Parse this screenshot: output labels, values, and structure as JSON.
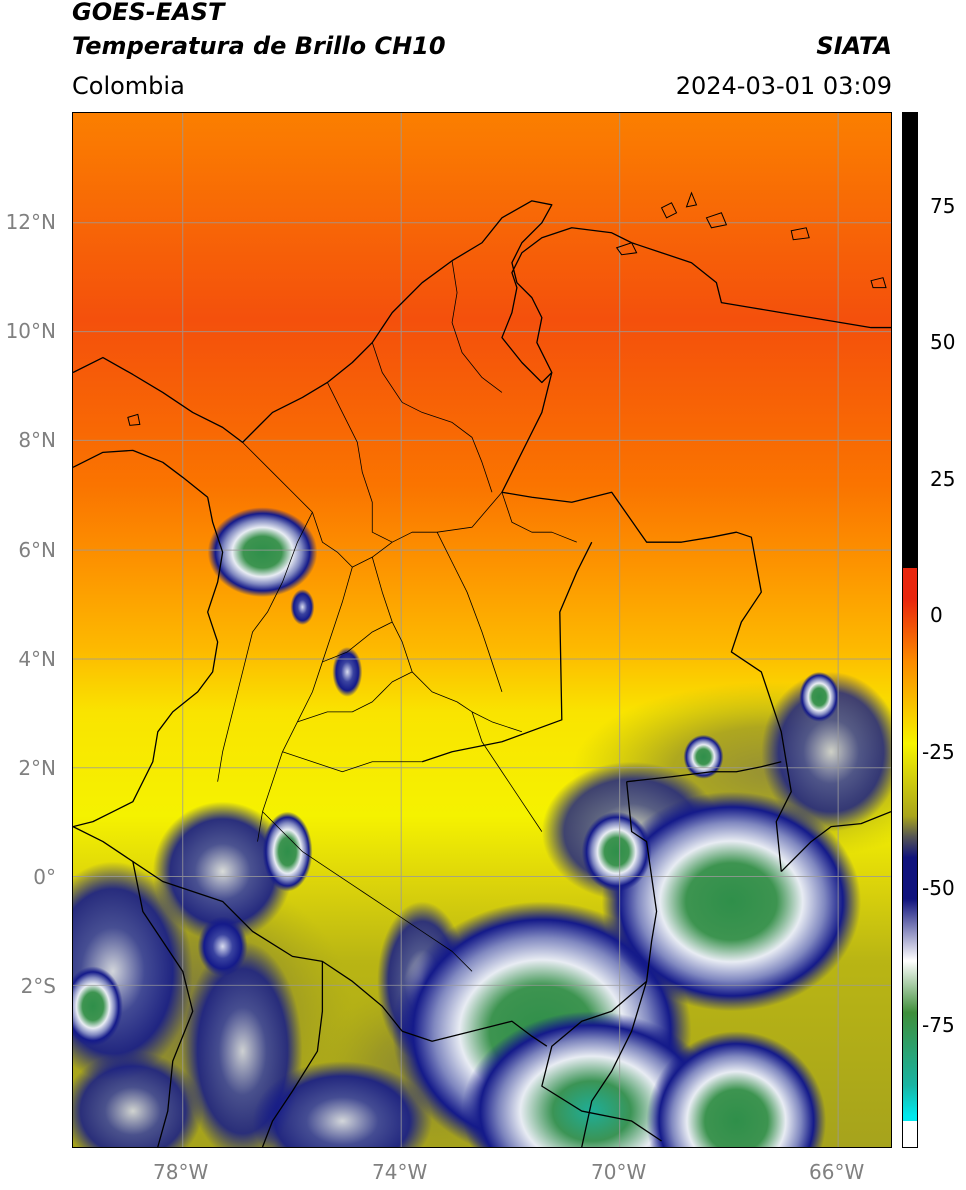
{
  "header": {
    "satellite": "GOES-EAST",
    "product": "Temperatura de Brillo CH10",
    "region": "Colombia",
    "agency": "SIATA",
    "datetime": "2024-03-01 03:09"
  },
  "axes": {
    "lat_ticks": [
      "12°N",
      "10°N",
      "8°N",
      "6°N",
      "4°N",
      "2°N",
      "0°",
      "2°S"
    ],
    "lon_ticks": [
      "78°W",
      "74°W",
      "70°W",
      "66°W"
    ]
  },
  "colorbar": {
    "labels": [
      "75",
      "50",
      "25",
      "0",
      "-25",
      "-50",
      "-75"
    ],
    "colors": {
      "black": "#000000",
      "red": "#e8260e",
      "orange": "#fb8a00",
      "yellow": "#f6f300",
      "olive": "#a9a51b",
      "navy": "#10137d",
      "white": "#ffffff",
      "green": "#3f8f3a",
      "teal": "#19b4a3",
      "cyan": "#00e8ee"
    }
  },
  "map": {
    "background_colors": {
      "north": "#f24d0a",
      "mid": "#fb8a00",
      "south_yellow": "#f2ee06",
      "olive": "#a8a41e",
      "cloud_navy": "#141a8a",
      "cloud_white": "#eef0f5",
      "cloud_green": "#3d8f45"
    },
    "gridline_color": "#9a9a9a",
    "border_color": "#000000"
  }
}
